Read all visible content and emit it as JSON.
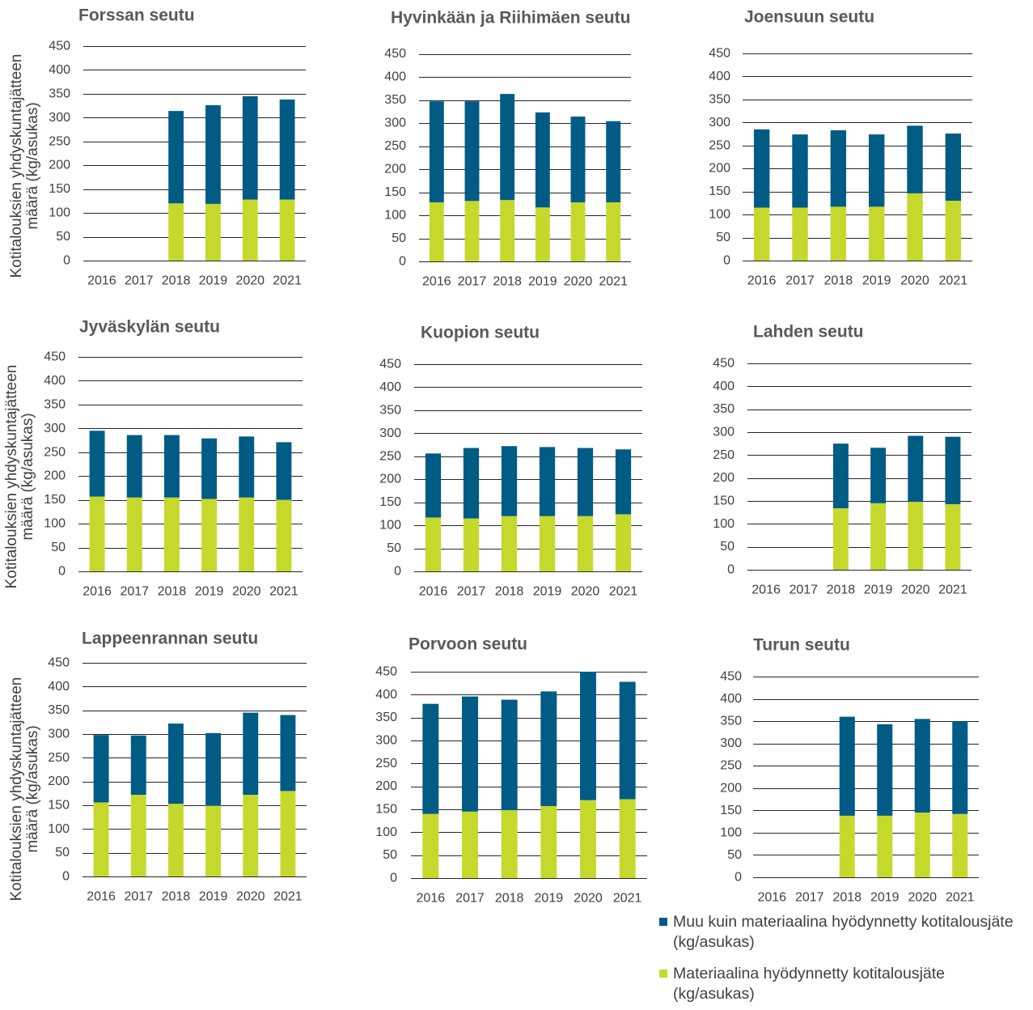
{
  "legend": [
    {
      "label": "Muu kuin materiaalina hyödynnetty kotitalousjäte (kg/asukas)",
      "color": "#005b85"
    },
    {
      "label": "Materiaalina hyödynnetty kotitalousjäte (kg/asukas)",
      "color": "#c5d92d"
    }
  ],
  "chart_data": [
    {
      "type": "bar",
      "stacked": true,
      "grid": true,
      "title": "Forssan seutu",
      "ylabel": "Kotitalouksien yhdyskuntajätteen määrä (kg/asukas)",
      "categories": [
        "2016",
        "2017",
        "2018",
        "2019",
        "2020",
        "2021"
      ],
      "ylim": [
        0,
        450
      ],
      "yticks": [
        0,
        50,
        100,
        150,
        200,
        250,
        300,
        350,
        400,
        450
      ],
      "series": [
        {
          "color": "#c5d92d",
          "values": [
            null,
            null,
            120,
            119,
            128,
            128
          ]
        },
        {
          "color": "#005b85",
          "values": [
            null,
            null,
            194,
            207,
            217,
            210
          ]
        }
      ]
    },
    {
      "type": "bar",
      "stacked": true,
      "grid": true,
      "title": "Hyvinkään ja Riihimäen seutu",
      "categories": [
        "2016",
        "2017",
        "2018",
        "2019",
        "2020",
        "2021"
      ],
      "ylim": [
        0,
        450
      ],
      "yticks": [
        0,
        50,
        100,
        150,
        200,
        250,
        300,
        350,
        400,
        450
      ],
      "series": [
        {
          "color": "#c5d92d",
          "values": [
            128,
            131,
            133,
            117,
            128,
            128
          ]
        },
        {
          "color": "#005b85",
          "values": [
            219,
            216,
            230,
            206,
            186,
            176
          ]
        }
      ]
    },
    {
      "type": "bar",
      "stacked": true,
      "grid": true,
      "title": "Joensuun seutu",
      "categories": [
        "2016",
        "2017",
        "2018",
        "2019",
        "2020",
        "2021"
      ],
      "ylim": [
        0,
        450
      ],
      "yticks": [
        0,
        50,
        100,
        150,
        200,
        250,
        300,
        350,
        400,
        450
      ],
      "series": [
        {
          "color": "#c5d92d",
          "values": [
            115,
            115,
            117,
            117,
            146,
            130
          ]
        },
        {
          "color": "#005b85",
          "values": [
            170,
            159,
            166,
            157,
            147,
            146
          ]
        }
      ]
    },
    {
      "type": "bar",
      "stacked": true,
      "grid": true,
      "title": "Jyväskylän seutu",
      "ylabel": "Kotitalouksien yhdyskuntajätteen määrä (kg/asukas)",
      "categories": [
        "2016",
        "2017",
        "2018",
        "2019",
        "2020",
        "2021"
      ],
      "ylim": [
        0,
        450
      ],
      "yticks": [
        0,
        50,
        100,
        150,
        200,
        250,
        300,
        350,
        400,
        450
      ],
      "series": [
        {
          "color": "#c5d92d",
          "values": [
            157,
            155,
            155,
            152,
            155,
            150
          ]
        },
        {
          "color": "#005b85",
          "values": [
            138,
            131,
            131,
            127,
            128,
            121
          ]
        }
      ]
    },
    {
      "type": "bar",
      "stacked": true,
      "grid": true,
      "title": "Kuopion seutu",
      "categories": [
        "2016",
        "2017",
        "2018",
        "2019",
        "2020",
        "2021"
      ],
      "ylim": [
        0,
        450
      ],
      "yticks": [
        0,
        50,
        100,
        150,
        200,
        250,
        300,
        350,
        400,
        450
      ],
      "series": [
        {
          "color": "#c5d92d",
          "values": [
            117,
            115,
            120,
            120,
            120,
            124
          ]
        },
        {
          "color": "#005b85",
          "values": [
            139,
            153,
            152,
            150,
            148,
            141
          ]
        }
      ]
    },
    {
      "type": "bar",
      "stacked": true,
      "grid": true,
      "title": "Lahden seutu",
      "categories": [
        "2016",
        "2017",
        "2018",
        "2019",
        "2020",
        "2021"
      ],
      "ylim": [
        0,
        450
      ],
      "yticks": [
        0,
        50,
        100,
        150,
        200,
        250,
        300,
        350,
        400,
        450
      ],
      "series": [
        {
          "color": "#c5d92d",
          "values": [
            null,
            null,
            134,
            145,
            148,
            143
          ]
        },
        {
          "color": "#005b85",
          "values": [
            null,
            null,
            141,
            121,
            144,
            147
          ]
        }
      ]
    },
    {
      "type": "bar",
      "stacked": true,
      "grid": true,
      "title": "Lappeenrannan seutu",
      "ylabel": "Kotitalouksien yhdyskuntajätteen määrä (kg/asukas)",
      "categories": [
        "2016",
        "2017",
        "2018",
        "2019",
        "2020",
        "2021"
      ],
      "ylim": [
        0,
        450
      ],
      "yticks": [
        0,
        50,
        100,
        150,
        200,
        250,
        300,
        350,
        400,
        450
      ],
      "series": [
        {
          "color": "#c5d92d",
          "values": [
            156,
            172,
            153,
            149,
            172,
            180
          ]
        },
        {
          "color": "#005b85",
          "values": [
            142,
            125,
            169,
            153,
            173,
            160
          ]
        }
      ]
    },
    {
      "type": "bar",
      "stacked": true,
      "grid": true,
      "title": "Porvoon seutu",
      "categories": [
        "2016",
        "2017",
        "2018",
        "2019",
        "2020",
        "2021"
      ],
      "ylim": [
        0,
        450
      ],
      "yticks": [
        0,
        50,
        100,
        150,
        200,
        250,
        300,
        350,
        400,
        450
      ],
      "series": [
        {
          "color": "#c5d92d",
          "values": [
            140,
            145,
            148,
            157,
            170,
            172
          ]
        },
        {
          "color": "#005b85",
          "values": [
            240,
            251,
            241,
            250,
            280,
            256
          ]
        }
      ]
    },
    {
      "type": "bar",
      "stacked": true,
      "grid": true,
      "title": "Turun seutu",
      "categories": [
        "2016",
        "2017",
        "2018",
        "2019",
        "2020",
        "2021"
      ],
      "ylim": [
        0,
        450
      ],
      "yticks": [
        0,
        50,
        100,
        150,
        200,
        250,
        300,
        350,
        400,
        450
      ],
      "series": [
        {
          "color": "#c5d92d",
          "values": [
            null,
            null,
            138,
            138,
            145,
            142
          ]
        },
        {
          "color": "#005b85",
          "values": [
            null,
            null,
            222,
            205,
            210,
            208
          ]
        }
      ]
    }
  ]
}
